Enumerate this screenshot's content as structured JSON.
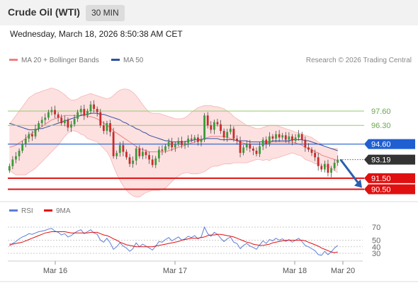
{
  "header": {
    "title": "Crude Oil (WTI)",
    "timeframe": "30 MIN"
  },
  "datetime": "Wednesday, March 18, 2026 8:50:38 AM CET",
  "legend": {
    "ma20": {
      "label": "MA 20 + Bollinger Bands",
      "color": "#f08080"
    },
    "ma50": {
      "label": "MA 50",
      "color": "#3050a0"
    }
  },
  "credit": "Research © 2026 Trading Central",
  "indicator_legend": {
    "rsi": {
      "label": "RSI",
      "color": "#5b7fd6"
    },
    "ma9": {
      "label": "9MA",
      "color": "#e01010"
    }
  },
  "chart_data": [
    {
      "type": "candlestick",
      "ylim": [
        89.5,
        101.2
      ],
      "x_ticks": [
        "Mar 16",
        "Mar 17",
        "Mar 18",
        "Mar 20"
      ],
      "current_price": {
        "label": "93.19",
        "value": 93.19
      },
      "levels": [
        {
          "label": "97.60",
          "value": 97.6,
          "kind": "resistance",
          "color": "#8fce6a"
        },
        {
          "label": "96.30",
          "value": 96.3,
          "kind": "resistance",
          "color": "#8fce6a"
        },
        {
          "label": "94.60",
          "value": 94.6,
          "kind": "pivot",
          "color": "#1f5fd1"
        },
        {
          "label": "91.50",
          "value": 91.5,
          "kind": "support",
          "color": "#e01010"
        },
        {
          "label": "90.50",
          "value": 90.5,
          "kind": "support",
          "color": "#e01010"
        }
      ],
      "forecast_arrow": {
        "from": 93.19,
        "to": 90.5,
        "color": "#2a5fb0"
      },
      "closes": [
        92.6,
        93.2,
        93.5,
        94.0,
        94.6,
        95.1,
        95.5,
        95.3,
        96.0,
        96.5,
        96.8,
        97.0,
        97.5,
        97.7,
        97.3,
        97.0,
        96.5,
        96.8,
        96.1,
        96.4,
        96.9,
        97.5,
        97.8,
        97.2,
        97.6,
        98.2,
        97.8,
        97.5,
        96.3,
        95.8,
        96.5,
        95.7,
        93.5,
        93.8,
        94.5,
        93.9,
        93.4,
        92.8,
        93.1,
        94.2,
        93.5,
        93.9,
        93.6,
        93.2,
        92.7,
        93.3,
        94.1,
        94.0,
        94.4,
        94.8,
        94.3,
        94.6,
        94.9,
        94.5,
        94.7,
        95.1,
        95.0,
        95.2,
        94.8,
        95.0,
        97.2,
        96.3,
        95.9,
        96.6,
        96.4,
        95.8,
        95.2,
        95.7,
        96.0,
        95.1,
        94.9,
        93.8,
        94.3,
        94.6,
        94.2,
        94.0,
        93.7,
        94.4,
        95.0,
        94.6,
        95.3,
        95.1,
        95.5,
        95.2,
        95.4,
        95.0,
        95.3,
        94.9,
        95.2,
        95.5,
        95.0,
        94.3,
        94.1,
        93.8,
        93.4,
        92.6,
        92.3,
        92.8,
        92.0,
        92.4,
        92.9,
        93.19
      ],
      "bollinger": {
        "upper": [
          96.4,
          96.8,
          97.2,
          97.6,
          98.0,
          98.4,
          98.8,
          99.0,
          99.2,
          99.3,
          99.4,
          99.5,
          99.6,
          99.7,
          99.6,
          99.5,
          99.3,
          99.1,
          98.8,
          98.6,
          98.6,
          98.7,
          98.9,
          99.0,
          99.1,
          99.2,
          99.1,
          99.0,
          98.9,
          98.8,
          98.7,
          98.8,
          99.0,
          99.3,
          99.5,
          99.6,
          99.6,
          99.5,
          99.3,
          99.0,
          98.6,
          98.2,
          97.8,
          97.5,
          97.4,
          97.4,
          97.4,
          97.3,
          97.2,
          97.1,
          97.0,
          96.9,
          96.9,
          96.9,
          97.0,
          97.2,
          97.5,
          97.7,
          97.9,
          98.0,
          98.1,
          98.1,
          98.1,
          98.0,
          98.0,
          97.9,
          97.8,
          97.6,
          97.4,
          97.1,
          96.9,
          96.7,
          96.5,
          96.3,
          96.2,
          96.1,
          96.0,
          96.0,
          96.1,
          96.2,
          96.3,
          96.3,
          96.3,
          96.2,
          96.1,
          96.0,
          95.9,
          95.8,
          95.7,
          95.6,
          95.5,
          95.4,
          95.3,
          95.2,
          95.0,
          94.8,
          94.6,
          94.4,
          94.3,
          94.2,
          94.2,
          94.2
        ],
        "middle": [
          94.3,
          94.4,
          94.5,
          94.7,
          94.9,
          95.1,
          95.4,
          95.6,
          95.8,
          96.0,
          96.2,
          96.4,
          96.6,
          96.8,
          96.9,
          97.0,
          97.1,
          97.2,
          97.2,
          97.2,
          97.2,
          97.2,
          97.2,
          97.2,
          97.1,
          97.1,
          97.0,
          96.9,
          96.7,
          96.5,
          96.3,
          96.1,
          95.8,
          95.6,
          95.4,
          95.2,
          95.0,
          94.8,
          94.6,
          94.4,
          94.2,
          94.1,
          94.0,
          93.9,
          93.9,
          93.9,
          93.9,
          93.9,
          93.9,
          94.0,
          94.1,
          94.2,
          94.3,
          94.4,
          94.5,
          94.6,
          94.7,
          94.8,
          94.9,
          95.0,
          95.1,
          95.2,
          95.3,
          95.3,
          95.3,
          95.3,
          95.3,
          95.2,
          95.1,
          95.0,
          94.9,
          94.8,
          94.7,
          94.6,
          94.6,
          94.6,
          94.6,
          94.6,
          94.6,
          94.7,
          94.7,
          94.8,
          94.8,
          94.8,
          94.8,
          94.8,
          94.8,
          94.8,
          94.7,
          94.6,
          94.5,
          94.3,
          94.2,
          94.1,
          93.9,
          93.8,
          93.6,
          93.5,
          93.4,
          93.3,
          93.2,
          93.1
        ],
        "lower": [
          92.2,
          92.0,
          91.8,
          91.8,
          91.8,
          91.8,
          92.0,
          92.2,
          92.4,
          92.7,
          93.0,
          93.3,
          93.6,
          93.9,
          94.2,
          94.5,
          94.9,
          95.3,
          95.6,
          95.8,
          95.8,
          95.7,
          95.5,
          95.4,
          95.1,
          95.0,
          94.9,
          94.8,
          94.5,
          94.2,
          93.9,
          93.4,
          92.6,
          91.9,
          91.3,
          90.8,
          90.4,
          90.1,
          89.9,
          89.8,
          89.8,
          90.0,
          90.2,
          90.3,
          90.4,
          90.4,
          90.4,
          90.5,
          90.6,
          90.9,
          91.2,
          91.5,
          91.7,
          91.9,
          92.0,
          92.0,
          91.9,
          91.9,
          91.9,
          92.0,
          92.1,
          92.3,
          92.5,
          92.6,
          92.6,
          92.7,
          92.8,
          92.8,
          92.8,
          92.9,
          92.9,
          92.9,
          92.9,
          92.9,
          93.0,
          93.1,
          93.2,
          93.2,
          93.1,
          93.2,
          93.1,
          93.3,
          93.3,
          93.4,
          93.5,
          93.6,
          93.7,
          93.8,
          93.7,
          93.6,
          93.5,
          93.2,
          93.1,
          93.0,
          92.8,
          92.8,
          92.6,
          92.6,
          92.5,
          92.4,
          92.2,
          92.0
        ]
      },
      "ma50": [
        96.5,
        96.4,
        96.3,
        96.2,
        96.1,
        96.0,
        95.9,
        95.9,
        95.9,
        96.0,
        96.0,
        96.1,
        96.2,
        96.3,
        96.4,
        96.5,
        96.6,
        96.7,
        96.8,
        96.9,
        97.0,
        97.1,
        97.2,
        97.3,
        97.3,
        97.4,
        97.4,
        97.4,
        97.3,
        97.3,
        97.2,
        97.1,
        97.0,
        96.9,
        96.8,
        96.6,
        96.5,
        96.3,
        96.2,
        96.0,
        95.9,
        95.7,
        95.6,
        95.4,
        95.3,
        95.2,
        95.1,
        95.0,
        94.9,
        94.9,
        94.8,
        94.8,
        94.8,
        94.8,
        94.8,
        94.9,
        94.9,
        95.0,
        95.0,
        95.0,
        95.1,
        95.1,
        95.1,
        95.1,
        95.1,
        95.0,
        95.0,
        95.0,
        95.0,
        95.0,
        94.9,
        94.9,
        94.9,
        94.9,
        94.8,
        94.8,
        94.8,
        94.8,
        94.8,
        94.8,
        94.8,
        94.9,
        94.9,
        94.9,
        94.9,
        94.9,
        94.9,
        95.0,
        95.0,
        95.0,
        95.0,
        94.9,
        94.9,
        94.8,
        94.7,
        94.6,
        94.5,
        94.4,
        94.3,
        94.2,
        94.1,
        94.0
      ]
    },
    {
      "type": "line",
      "y_ticks": [
        "70",
        "50",
        "40",
        "30"
      ],
      "ylim": [
        22,
        76
      ],
      "series": [
        {
          "name": "RSI",
          "color": "#5b7fd6",
          "values": [
            41,
            45,
            48,
            52,
            55,
            57,
            60,
            59,
            61,
            63,
            64,
            65,
            67,
            68,
            64,
            62,
            58,
            60,
            55,
            57,
            61,
            64,
            66,
            60,
            63,
            66,
            61,
            59,
            50,
            47,
            53,
            46,
            36,
            40,
            46,
            41,
            38,
            33,
            37,
            46,
            40,
            44,
            41,
            38,
            35,
            41,
            48,
            47,
            51,
            54,
            49,
            52,
            55,
            50,
            52,
            56,
            54,
            57,
            52,
            55,
            70,
            60,
            56,
            62,
            59,
            53,
            48,
            52,
            55,
            47,
            45,
            37,
            42,
            45,
            41,
            39,
            36,
            43,
            49,
            45,
            51,
            49,
            53,
            50,
            52,
            48,
            51,
            47,
            50,
            53,
            48,
            42,
            40,
            37,
            34,
            28,
            27,
            33,
            28,
            32,
            38,
            42
          ]
        },
        {
          "name": "9MA",
          "color": "#e01010",
          "values": [
            44,
            44,
            45,
            46,
            47,
            49,
            51,
            53,
            55,
            57,
            59,
            61,
            62,
            63,
            63,
            63,
            63,
            63,
            62,
            61,
            61,
            61,
            61,
            61,
            61,
            62,
            62,
            62,
            60,
            58,
            57,
            55,
            52,
            50,
            47,
            45,
            43,
            42,
            41,
            40,
            40,
            40,
            40,
            40,
            40,
            41,
            42,
            43,
            44,
            45,
            46,
            47,
            48,
            50,
            51,
            52,
            53,
            53,
            53,
            54,
            55,
            57,
            58,
            58,
            59,
            59,
            58,
            57,
            56,
            55,
            53,
            51,
            49,
            47,
            46,
            44,
            43,
            42,
            42,
            43,
            44,
            46,
            47,
            48,
            49,
            50,
            50,
            50,
            50,
            50,
            50,
            49,
            47,
            45,
            43,
            41,
            38,
            36,
            34,
            32,
            31,
            32
          ]
        }
      ]
    }
  ]
}
